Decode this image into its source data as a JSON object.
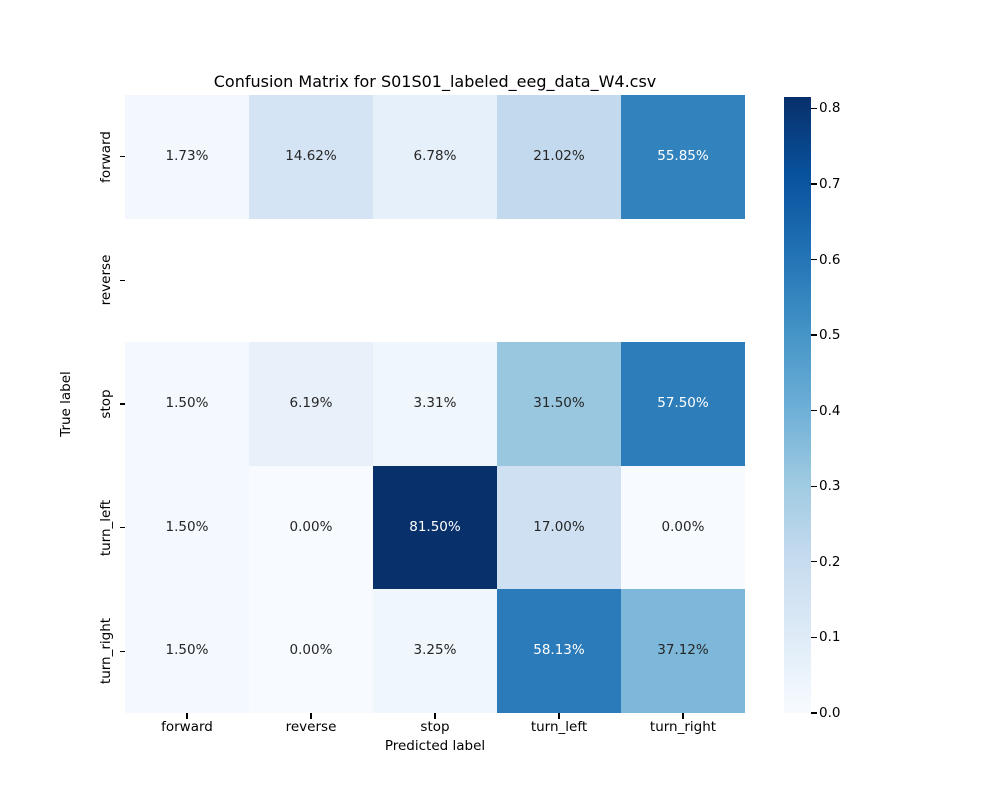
{
  "figure": {
    "background": "#ffffff"
  },
  "chart_data": {
    "type": "heatmap",
    "title": "Confusion Matrix for S01S01_labeled_eeg_data_W4.csv",
    "xlabel": "Predicted label",
    "ylabel": "True label",
    "x_categories": [
      "forward",
      "reverse",
      "stop",
      "turn_left",
      "turn_right"
    ],
    "y_categories": [
      "forward",
      "reverse",
      "stop",
      "turn_left",
      "turn_right"
    ],
    "cell_text": [
      [
        "1.73%",
        "14.62%",
        "6.78%",
        "21.02%",
        "55.85%"
      ],
      [
        "",
        "",
        "",
        "",
        ""
      ],
      [
        "1.50%",
        "6.19%",
        "3.31%",
        "31.50%",
        "57.50%"
      ],
      [
        "1.50%",
        "0.00%",
        "81.50%",
        "17.00%",
        "0.00%"
      ],
      [
        "1.50%",
        "0.00%",
        "3.25%",
        "58.13%",
        "37.12%"
      ]
    ],
    "values": [
      [
        0.0173,
        0.1462,
        0.0678,
        0.2102,
        0.5585
      ],
      [
        null,
        null,
        null,
        null,
        null
      ],
      [
        0.015,
        0.0619,
        0.0331,
        0.315,
        0.575
      ],
      [
        0.015,
        0.0,
        0.815,
        0.17,
        0.0
      ],
      [
        0.015,
        0.0,
        0.0325,
        0.5813,
        0.3712
      ]
    ],
    "vmin": 0.0,
    "vmax": 0.815,
    "colormap_name": "Blues",
    "colormap_anchors": [
      "#f7fbff",
      "#deebf7",
      "#c6dbef",
      "#9ecae1",
      "#6baed6",
      "#4292c6",
      "#2171b5",
      "#08519c",
      "#08306b"
    ],
    "empty_cell_color": "#ffffff",
    "cell_text_dark": "#262626",
    "cell_text_light": "#ffffff",
    "colorbar_ticks": [
      "0.0",
      "0.1",
      "0.2",
      "0.3",
      "0.4",
      "0.5",
      "0.6",
      "0.7",
      "0.8"
    ],
    "legend_position": "right-colorbar",
    "grid": false
  }
}
